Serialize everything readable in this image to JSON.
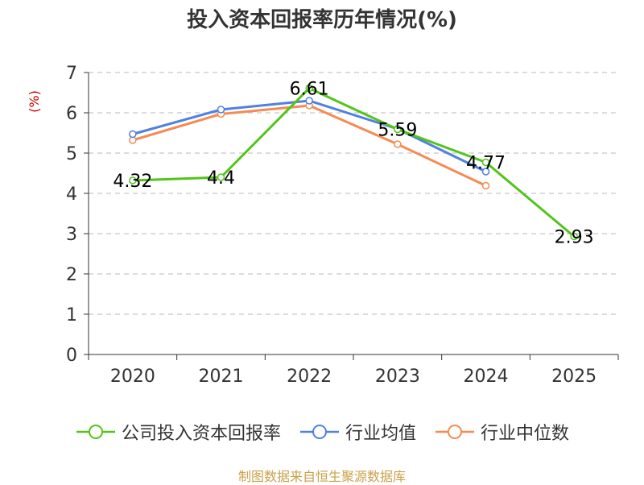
{
  "chart_data": {
    "type": "line",
    "title": "投入资本回报率历年情况(%)",
    "ylabel": "(%)",
    "xlabel": "",
    "categories": [
      "2020",
      "2021",
      "2022",
      "2023",
      "2024",
      "2025"
    ],
    "ylim": [
      0,
      7
    ],
    "yticks": [
      0,
      1,
      2,
      3,
      4,
      5,
      6,
      7
    ],
    "grid": true,
    "legend_position": "bottom",
    "series": [
      {
        "name": "公司投入资本回报率",
        "color": "#52c41a",
        "values": [
          4.32,
          4.4,
          6.61,
          5.59,
          4.77,
          2.93
        ],
        "labels": [
          "4.32",
          "4.4",
          "6.61",
          "5.59",
          "4.77",
          "2.93"
        ]
      },
      {
        "name": "行业均值",
        "color": "#4f81e0",
        "values": [
          5.47,
          6.08,
          6.3,
          5.6,
          4.54,
          null
        ]
      },
      {
        "name": "行业中位数",
        "color": "#f58b52",
        "values": [
          5.32,
          5.97,
          6.18,
          5.22,
          4.19,
          null
        ]
      }
    ],
    "source": "制图数据来自恒生聚源数据库"
  }
}
